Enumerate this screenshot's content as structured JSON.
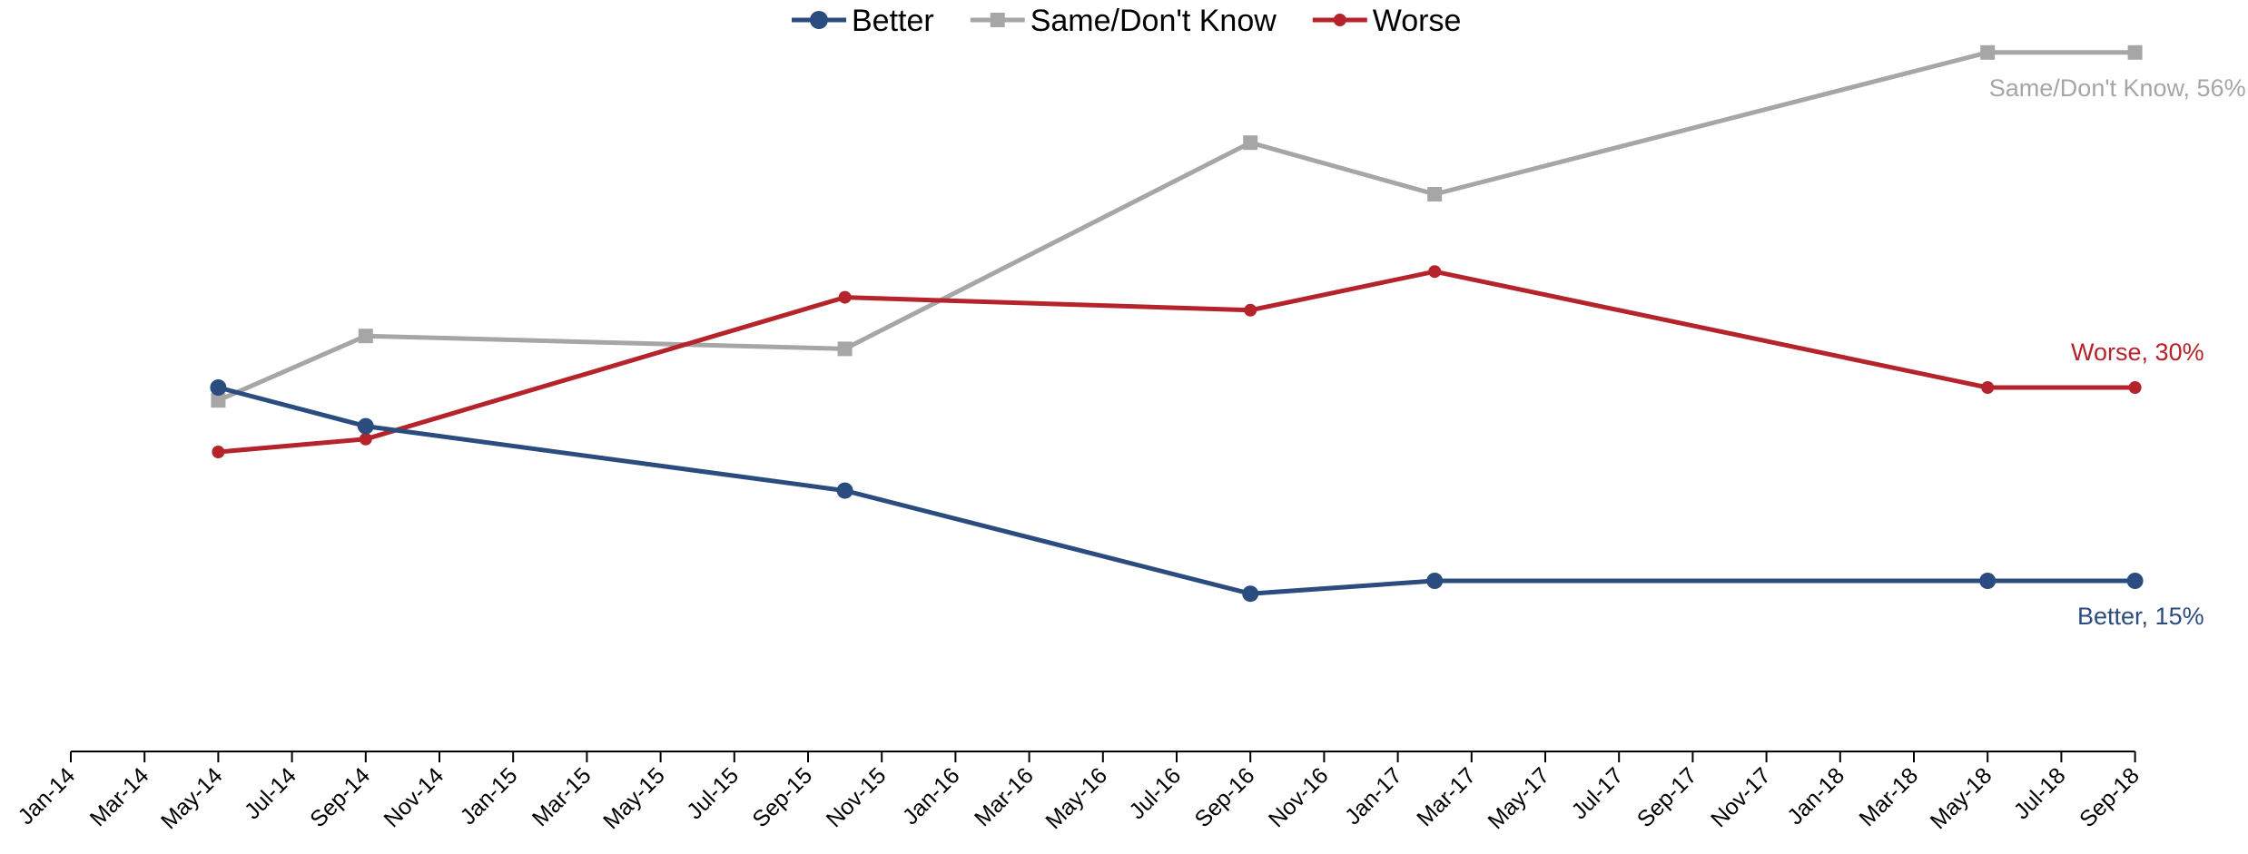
{
  "chart_data": {
    "type": "line",
    "title": "",
    "xlabel": "",
    "ylabel": "",
    "x_ticks": [
      "Jan-14",
      "Mar-14",
      "May-14",
      "Jul-14",
      "Sep-14",
      "Nov-14",
      "Jan-15",
      "Mar-15",
      "May-15",
      "Jul-15",
      "Sep-15",
      "Nov-15",
      "Jan-16",
      "Mar-16",
      "May-16",
      "Jul-16",
      "Sep-16",
      "Nov-16",
      "Jan-17",
      "Mar-17",
      "May-17",
      "Jul-17",
      "Sep-17",
      "Nov-17",
      "Jan-18",
      "Mar-18",
      "May-18",
      "Jul-18",
      "Sep-18"
    ],
    "grid": false,
    "legend_position": "top-center",
    "series": [
      {
        "name": "Better",
        "color": "#2B4C7E",
        "marker": "circle",
        "x": [
          "May-14",
          "Sep-14",
          "Oct-15",
          "Sep-16",
          "Feb-17",
          "May-18",
          "Sep-18"
        ],
        "values": [
          30,
          27,
          22,
          14,
          15,
          15,
          15
        ],
        "end_label": "Better, 15%"
      },
      {
        "name": "Same/Don't Know",
        "color": "#A6A6A6",
        "marker": "square",
        "x": [
          "May-14",
          "Sep-14",
          "Oct-15",
          "Sep-16",
          "Feb-17",
          "May-18",
          "Sep-18"
        ],
        "values": [
          29,
          34,
          33,
          49,
          45,
          56,
          56
        ],
        "end_label": "Same/Don't Know, 56%"
      },
      {
        "name": "Worse",
        "color": "#B5232B",
        "marker": "circle",
        "x": [
          "May-14",
          "Sep-14",
          "Oct-15",
          "Sep-16",
          "Feb-17",
          "May-18",
          "Sep-18"
        ],
        "values": [
          25,
          26,
          37,
          36,
          39,
          30,
          30
        ],
        "end_label": "Worse, 30%"
      }
    ]
  }
}
